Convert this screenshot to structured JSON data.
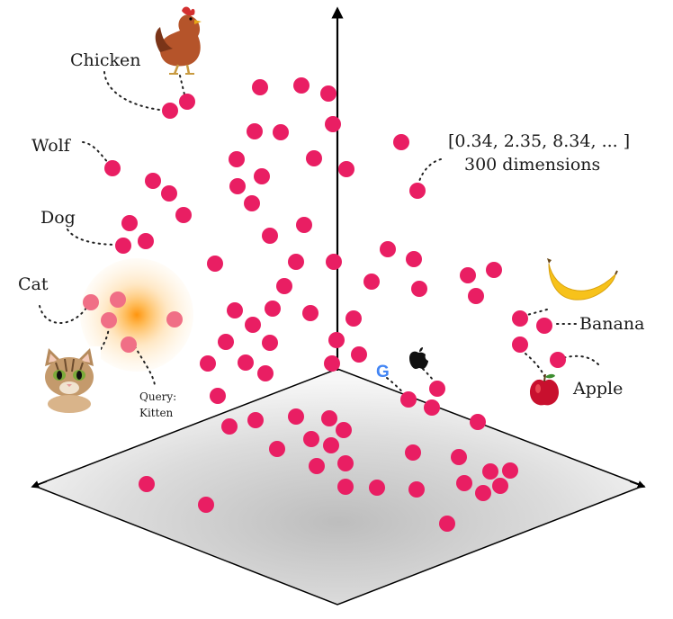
{
  "labels": {
    "chicken": "Chicken",
    "wolf": "Wolf",
    "dog": "Dog",
    "cat": "Cat",
    "banana": "Banana",
    "apple": "Apple",
    "vector": "[0.34, 2.35, 8.34, ... ]",
    "dimensions": "300 dimensions",
    "query_line1": "Query:",
    "query_line2": "Kitten",
    "google_glyph": "G"
  },
  "icons": {
    "chicken": "chicken-icon",
    "cat": "cat-icon",
    "banana": "banana-icon",
    "apple_fruit": "apple-fruit-icon",
    "google_logo": "google-logo-icon",
    "apple_logo": "apple-logo-icon"
  },
  "colors": {
    "point": "#e91e63",
    "query_glow": "#ff9800",
    "axis": "#000000",
    "plane_dark": "#bdbdbd",
    "plane_light": "#f7f7f7"
  }
}
